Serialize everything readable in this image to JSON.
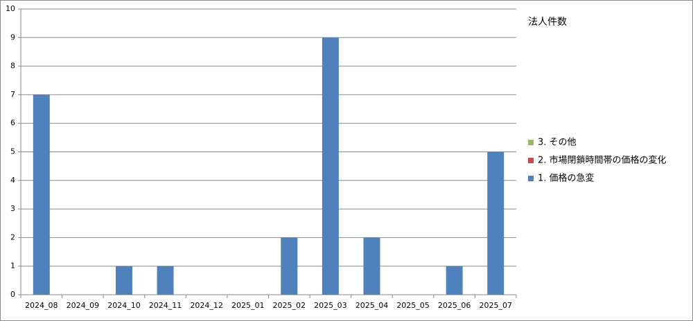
{
  "chart_data": {
    "type": "stacked-bar",
    "title": "法人件数",
    "categories": [
      "2024_08",
      "2024_09",
      "2024_10",
      "2024_11",
      "2024_12",
      "2025_01",
      "2025_02",
      "2025_03",
      "2025_04",
      "2025_05",
      "2025_06",
      "2025_07"
    ],
    "series": [
      {
        "name": "1. 価格の急変",
        "color": "#4f81bd",
        "values": [
          7,
          0,
          1,
          1,
          0,
          0,
          2,
          9,
          2,
          0,
          1,
          5
        ]
      },
      {
        "name": "2. 市場閉鎖時間帯の価格の変化",
        "color": "#c0504d",
        "values": [
          0,
          0,
          0,
          0,
          0,
          0,
          0,
          0,
          0,
          0,
          0,
          0
        ]
      },
      {
        "name": "3. その他",
        "color": "#9bbb59",
        "values": [
          0,
          0,
          0,
          0,
          0,
          0,
          0,
          0,
          0,
          0,
          0,
          0
        ]
      }
    ],
    "ylim": [
      0,
      10
    ],
    "yticks": [
      0,
      1,
      2,
      3,
      4,
      5,
      6,
      7,
      8,
      9,
      10
    ],
    "grid": true,
    "legend": "right"
  }
}
